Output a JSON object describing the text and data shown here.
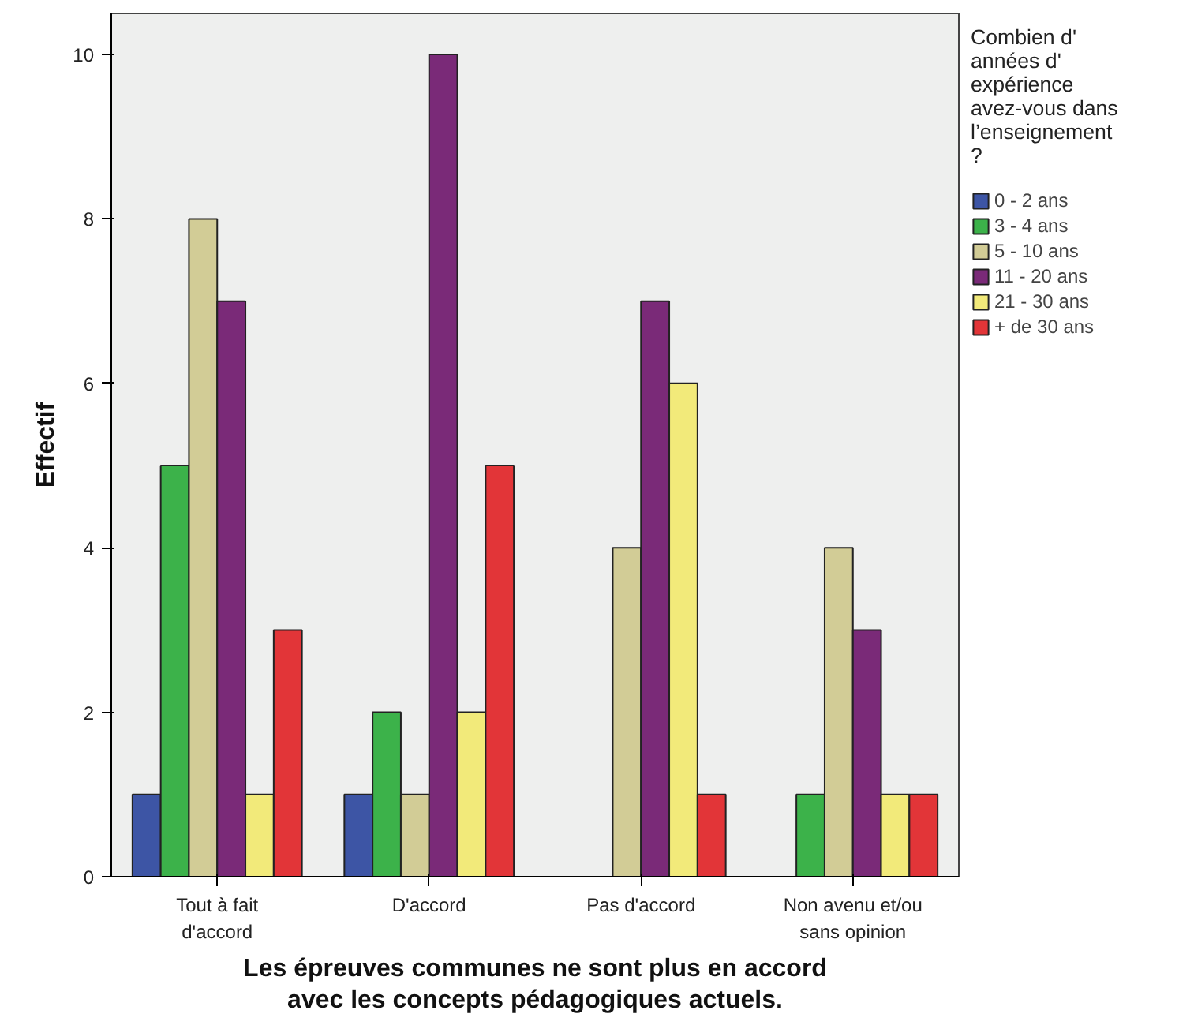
{
  "chart_data": {
    "type": "bar",
    "xlabel": "Les épreuves communes ne sont plus en accord avec les concepts pédagogiques actuels.",
    "ylabel": "Effectif",
    "legend_title": "Combien d' années d' expérience avez-vous dans l’enseignement ?",
    "categories": [
      "Tout à fait d'accord",
      "D'accord",
      "Pas d'accord",
      "Non avenu et/ou sans opinion"
    ],
    "series": [
      {
        "name": "0 - 2 ans",
        "color": "#3d55a5",
        "values": [
          1,
          1,
          0,
          0
        ]
      },
      {
        "name": "3 - 4 ans",
        "color": "#3cb24a",
        "values": [
          5,
          2,
          0,
          1
        ]
      },
      {
        "name": "5 - 10 ans",
        "color": "#d2cc96",
        "values": [
          8,
          1,
          4,
          4
        ]
      },
      {
        "name": "11 - 20 ans",
        "color": "#7a2a78",
        "values": [
          7,
          10,
          7,
          3
        ]
      },
      {
        "name": "21 - 30 ans",
        "color": "#f2ea7a",
        "values": [
          1,
          2,
          6,
          1
        ]
      },
      {
        "name": "+ de 30 ans",
        "color": "#e23538",
        "values": [
          3,
          5,
          1,
          1
        ]
      }
    ],
    "ylim": [
      0,
      10.5
    ],
    "yticks": [
      0,
      2,
      4,
      6,
      8,
      10
    ],
    "grid": false,
    "legend": "right"
  }
}
